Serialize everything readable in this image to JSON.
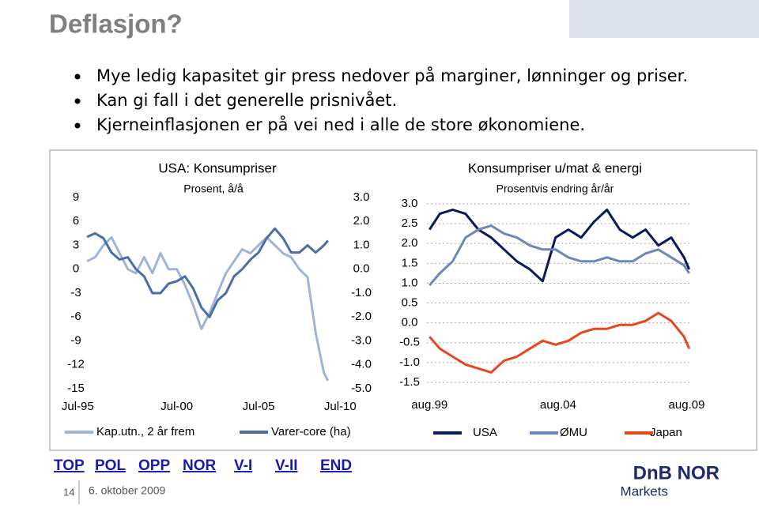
{
  "header": {
    "title": "Deflasjon?"
  },
  "bullets": [
    "Mye ledig kapasitet gir press nedover på marginer, lønninger og priser.",
    "Kan gi fall i det generelle prisnivået.",
    "Kjerneinflasjonen er på vei ned i alle de store økonomiene."
  ],
  "chart_data": [
    {
      "type": "line",
      "title": "USA: Konsumpriser",
      "subtitle": "Prosent, å/å",
      "x": [
        1995,
        1995.5,
        1996,
        1996.5,
        1997,
        1997.5,
        1998,
        1998.5,
        1999,
        1999.5,
        2000,
        2000.5,
        2001,
        2001.5,
        2002,
        2002.5,
        2003,
        2003.5,
        2004,
        2004.5,
        2005,
        2005.5,
        2006,
        2006.5,
        2007,
        2007.5,
        2008,
        2008.5,
        2009,
        2009.5,
        2009.75
      ],
      "xlim": [
        1995,
        2010
      ],
      "xticks": [
        {
          "value": 1995.5,
          "label": "Jul-95"
        },
        {
          "value": 2000.5,
          "label": "Jul-00"
        },
        {
          "value": 2005.5,
          "label": "Jul-05"
        },
        {
          "value": 2010.5,
          "label": "Jul-10"
        }
      ],
      "ylim": [
        -15,
        9
      ],
      "yticks": [
        9,
        6,
        3,
        0,
        -3,
        -6,
        -9,
        -12,
        -15
      ],
      "y2lim": [
        -5,
        3
      ],
      "y2ticks": [
        {
          "value": 3,
          "label": "3.0"
        },
        {
          "value": 2,
          "label": "2.0"
        },
        {
          "value": 1,
          "label": "1.0"
        },
        {
          "value": 0,
          "label": "0.0"
        },
        {
          "value": -1,
          "label": "-1.0"
        },
        {
          "value": -2,
          "label": "-2.0"
        },
        {
          "value": -3,
          "label": "-3.0"
        },
        {
          "value": -4,
          "label": "-4.0"
        },
        {
          "value": -5,
          "label": "-5.0"
        }
      ],
      "grid": false,
      "legend": "bottom",
      "series": [
        {
          "name": "Kap.utn., 2 år frem",
          "color": "#9fb4d8",
          "values": [
            1,
            1.5,
            3,
            4,
            2,
            0,
            -0.5,
            1.5,
            -0.5,
            2,
            0,
            0,
            -2,
            -4.5,
            -7.5,
            -5.5,
            -3,
            -0.5,
            1,
            2.5,
            2,
            3,
            4,
            3,
            2,
            1.5,
            0,
            -1,
            -8,
            -13,
            -14
          ]
        },
        {
          "name": "Varer-core (ha)",
          "color": "#4a6fa5",
          "axis": "y2",
          "values": [
            1.35,
            1.5,
            1.3,
            0.7,
            0.4,
            0.5,
            0,
            -0.3,
            -1,
            -1,
            -0.6,
            -0.5,
            -0.3,
            -0.8,
            -1.6,
            -2,
            -1.3,
            -1,
            -0.3,
            0,
            0.4,
            0.7,
            1.3,
            1.7,
            1.3,
            0.7,
            0.7,
            1,
            0.7,
            1,
            1.2
          ]
        }
      ]
    },
    {
      "type": "line",
      "title": "Konsumpriser u/mat & energi",
      "subtitle": "Prosentvis endring år/år",
      "x": [
        1999.6,
        2000,
        2000.5,
        2001,
        2001.5,
        2002,
        2002.5,
        2003,
        2003.5,
        2004,
        2004.5,
        2005,
        2005.5,
        2006,
        2006.5,
        2007,
        2007.5,
        2008,
        2008.5,
        2009,
        2009.5,
        2009.7
      ],
      "xlim": [
        1999.5,
        2009.8
      ],
      "xticks": [
        {
          "value": 1999.6,
          "label": "aug.99"
        },
        {
          "value": 2004.6,
          "label": "aug.04"
        },
        {
          "value": 2009.6,
          "label": "aug.09"
        }
      ],
      "ylim": [
        -1.5,
        3
      ],
      "yticks": [
        {
          "value": 3,
          "label": "3.0"
        },
        {
          "value": 2.5,
          "label": "2.5"
        },
        {
          "value": 2,
          "label": "2.0"
        },
        {
          "value": 1.5,
          "label": "1.5"
        },
        {
          "value": 1,
          "label": "1.0"
        },
        {
          "value": 0.5,
          "label": "0.5"
        },
        {
          "value": 0,
          "label": "0.0"
        },
        {
          "value": -0.5,
          "label": "-0.5"
        },
        {
          "value": -1,
          "label": "-1.0"
        },
        {
          "value": -1.5,
          "label": "-1.5"
        }
      ],
      "grid": true,
      "legend": "bottom",
      "series": [
        {
          "name": "USA",
          "color": "#0a1a5c",
          "values": [
            2.35,
            2.75,
            2.85,
            2.75,
            2.35,
            2.15,
            1.85,
            1.55,
            1.35,
            1.05,
            2.15,
            2.35,
            2.15,
            2.55,
            2.85,
            2.35,
            2.15,
            2.35,
            1.95,
            2.15,
            1.65,
            1.35
          ]
        },
        {
          "name": "ØMU",
          "color": "#6c87b8",
          "values": [
            0.95,
            1.25,
            1.55,
            2.15,
            2.35,
            2.45,
            2.25,
            2.15,
            1.95,
            1.85,
            1.85,
            1.65,
            1.55,
            1.55,
            1.65,
            1.55,
            1.55,
            1.75,
            1.85,
            1.65,
            1.45,
            1.25
          ]
        },
        {
          "name": "Japan",
          "color": "#e8461e",
          "values": [
            -0.35,
            -0.65,
            -0.85,
            -1.05,
            -1.15,
            -1.25,
            -0.95,
            -0.85,
            -0.65,
            -0.45,
            -0.55,
            -0.45,
            -0.25,
            -0.15,
            -0.15,
            -0.05,
            -0.05,
            0.05,
            0.25,
            0.05,
            -0.35,
            -0.65
          ]
        }
      ]
    }
  ],
  "nav": [
    "TOP",
    "POL",
    "OPP",
    "NOR",
    "V-I",
    "V-II",
    "END"
  ],
  "footer": {
    "page": "14",
    "date": "6. oktober 2009",
    "logo": "DnB NOR",
    "logo_sub": "Markets"
  }
}
